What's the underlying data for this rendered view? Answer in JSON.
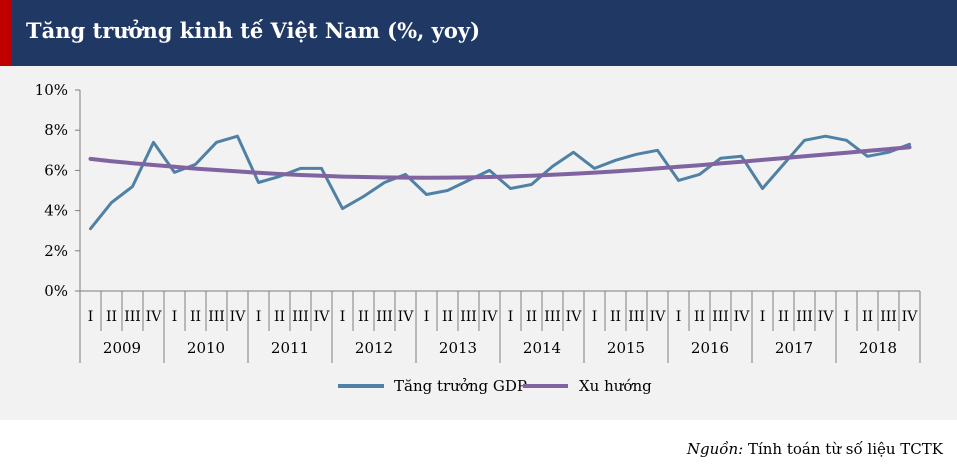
{
  "header": {
    "title": "Tăng trưởng kinh tế Việt Nam (%, yoy)",
    "accent_color": "#c00000",
    "background_color": "#1f3864"
  },
  "source": {
    "prefix": "Nguồn:",
    "text": " Tính toán từ số liệu TCTK"
  },
  "chart_data": {
    "type": "line",
    "title": "Tăng trưởng kinh tế Việt Nam (%, yoy)",
    "xlabel": "",
    "ylabel": "",
    "ylim": [
      0,
      10
    ],
    "yticks": [
      0,
      2,
      4,
      6,
      8,
      10
    ],
    "ytick_labels": [
      "0%",
      "2%",
      "4%",
      "6%",
      "8%",
      "10%"
    ],
    "grid": false,
    "legend_position": "bottom",
    "quarters": [
      "I",
      "II",
      "III",
      "IV"
    ],
    "years": [
      "2009",
      "2010",
      "2011",
      "2012",
      "2013",
      "2014",
      "2015",
      "2016",
      "2017",
      "2018"
    ],
    "series": [
      {
        "name": "Tăng trưởng GDP",
        "color": "#4f81a6",
        "values": [
          3.1,
          4.4,
          5.2,
          7.4,
          5.9,
          6.3,
          7.4,
          7.7,
          5.4,
          5.7,
          6.1,
          6.1,
          4.1,
          4.7,
          5.4,
          5.8,
          4.8,
          5.0,
          5.5,
          6.0,
          5.1,
          5.3,
          6.2,
          6.9,
          6.1,
          6.5,
          6.8,
          7.0,
          5.5,
          5.8,
          6.6,
          6.7,
          5.1,
          6.3,
          7.5,
          7.7,
          7.5,
          6.7,
          6.9,
          7.3
        ]
      },
      {
        "name": "Xu hướng",
        "color": "#8064a2",
        "values": [
          6.57,
          6.46,
          6.36,
          6.27,
          6.18,
          6.09,
          6.02,
          5.95,
          5.88,
          5.82,
          5.77,
          5.73,
          5.69,
          5.67,
          5.65,
          5.64,
          5.63,
          5.64,
          5.65,
          5.67,
          5.7,
          5.73,
          5.78,
          5.83,
          5.89,
          5.95,
          6.02,
          6.1,
          6.18,
          6.26,
          6.35,
          6.43,
          6.52,
          6.61,
          6.7,
          6.79,
          6.88,
          6.97,
          7.06,
          7.15
        ]
      }
    ]
  }
}
